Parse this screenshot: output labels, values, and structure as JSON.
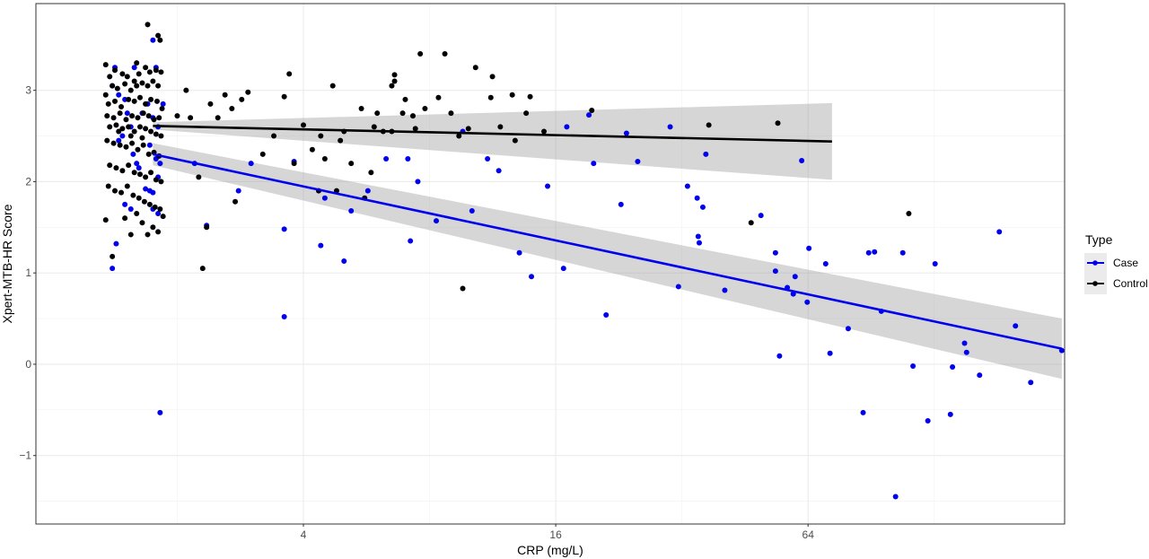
{
  "chart_data": {
    "type": "scatter",
    "title": "",
    "xlabel": "CRP (mg/L)",
    "ylabel": "Xpert-MTB-HR Score",
    "x_scale": "log2",
    "x_ticks": [
      4,
      16,
      64
    ],
    "y_ticks": [
      -1,
      0,
      1,
      2,
      3
    ],
    "xlim": [
      0.92,
      262
    ],
    "ylim": [
      -1.75,
      3.95
    ],
    "grid": true,
    "legend": {
      "title": "Type",
      "position": "right",
      "entries": [
        "Case",
        "Control"
      ]
    },
    "series": [
      {
        "name": "Case",
        "color": "#0000ee",
        "points": [
          [
            1.4,
            3.05
          ],
          [
            1.45,
            2.95
          ],
          [
            1.5,
            2.9
          ],
          [
            1.52,
            2.75
          ],
          [
            1.55,
            2.6
          ],
          [
            1.57,
            2.3
          ],
          [
            1.6,
            2.2
          ],
          [
            1.62,
            2.15
          ],
          [
            1.45,
            2.45
          ],
          [
            1.48,
            2.5
          ],
          [
            1.5,
            1.75
          ],
          [
            1.55,
            1.7
          ],
          [
            1.43,
            1.32
          ],
          [
            1.4,
            1.05
          ],
          [
            1.42,
            3.25
          ],
          [
            1.58,
            3.25
          ],
          [
            1.75,
            3.55
          ],
          [
            1.78,
            3.25
          ],
          [
            1.7,
            2.85
          ],
          [
            1.65,
            2.75
          ],
          [
            1.75,
            2.7
          ],
          [
            1.8,
            2.6
          ],
          [
            1.72,
            2.4
          ],
          [
            1.78,
            2.25
          ],
          [
            1.82,
            2.2
          ],
          [
            1.8,
            2.05
          ],
          [
            1.72,
            1.9
          ],
          [
            1.75,
            1.88
          ],
          [
            1.68,
            1.92
          ],
          [
            1.75,
            1.7
          ],
          [
            1.8,
            1.65
          ],
          [
            1.82,
            -0.53
          ],
          [
            1.85,
            2.85
          ],
          [
            2.2,
            2.2
          ],
          [
            2.35,
            1.52
          ],
          [
            2.8,
            1.9
          ],
          [
            3.0,
            2.2
          ],
          [
            3.6,
            1.48
          ],
          [
            3.6,
            0.52
          ],
          [
            3.8,
            2.22
          ],
          [
            4.4,
            1.3
          ],
          [
            4.5,
            1.82
          ],
          [
            5.0,
            1.13
          ],
          [
            5.2,
            1.68
          ],
          [
            5.7,
            1.9
          ],
          [
            6.3,
            2.25
          ],
          [
            7.2,
            1.35
          ],
          [
            7.1,
            2.25
          ],
          [
            7.5,
            2.0
          ],
          [
            8.3,
            1.57
          ],
          [
            9.6,
            2.55
          ],
          [
            10.1,
            1.68
          ],
          [
            11.0,
            2.25
          ],
          [
            11.7,
            2.12
          ],
          [
            13.1,
            1.22
          ],
          [
            14.0,
            0.96
          ],
          [
            15.3,
            1.95
          ],
          [
            16.7,
            1.05
          ],
          [
            19.2,
            2.73
          ],
          [
            19.7,
            2.2
          ],
          [
            21.1,
            0.54
          ],
          [
            22.9,
            1.75
          ],
          [
            23.6,
            2.53
          ],
          [
            25.1,
            2.22
          ],
          [
            31.4,
            0.85
          ],
          [
            33.0,
            1.95
          ],
          [
            34.8,
            1.82
          ],
          [
            35.2,
            1.33
          ],
          [
            35.9,
            1.72
          ],
          [
            36.5,
            2.3
          ],
          [
            40.5,
            0.81
          ],
          [
            49.4,
            1.63
          ],
          [
            53.5,
            1.22
          ],
          [
            53.5,
            1.02
          ],
          [
            54.7,
            0.09
          ],
          [
            57.1,
            0.84
          ],
          [
            59.0,
            0.77
          ],
          [
            59.6,
            0.96
          ],
          [
            61.8,
            2.23
          ],
          [
            63.7,
            0.68
          ],
          [
            64.3,
            1.27
          ],
          [
            70.5,
            1.1
          ],
          [
            72.2,
            0.12
          ],
          [
            79.8,
            0.39
          ],
          [
            86.6,
            -0.53
          ],
          [
            89.3,
            1.22
          ],
          [
            92.2,
            1.23
          ],
          [
            95.7,
            0.58
          ],
          [
            103.5,
            -1.45
          ],
          [
            107.7,
            1.22
          ],
          [
            113.9,
            -0.02
          ],
          [
            123.6,
            -0.62
          ],
          [
            128.6,
            1.1
          ],
          [
            139.9,
            -0.55
          ],
          [
            141.5,
            -0.03
          ],
          [
            151.2,
            0.23
          ],
          [
            152.9,
            0.13
          ],
          [
            164.2,
            -0.12
          ],
          [
            183.0,
            1.45
          ],
          [
            200.0,
            0.42
          ],
          [
            217.5,
            -0.2
          ],
          [
            258.0,
            0.15
          ],
          [
            30.0,
            2.6
          ],
          [
            35.0,
            1.4
          ],
          [
            17.0,
            2.6
          ]
        ]
      },
      {
        "name": "Control",
        "color": "#000000",
        "points": [
          [
            1.35,
            3.28
          ],
          [
            1.38,
            3.15
          ],
          [
            1.42,
            3.22
          ],
          [
            1.48,
            3.18
          ],
          [
            1.52,
            3.15
          ],
          [
            1.58,
            3.1
          ],
          [
            1.62,
            3.18
          ],
          [
            1.68,
            3.25
          ],
          [
            1.72,
            3.2
          ],
          [
            1.78,
            3.22
          ],
          [
            1.35,
            2.95
          ],
          [
            1.4,
            3.05
          ],
          [
            1.44,
            3.02
          ],
          [
            1.5,
            3.07
          ],
          [
            1.55,
            3.0
          ],
          [
            1.6,
            3.05
          ],
          [
            1.65,
            3.08
          ],
          [
            1.7,
            3.05
          ],
          [
            1.75,
            3.1
          ],
          [
            1.8,
            3.05
          ],
          [
            1.37,
            2.85
          ],
          [
            1.42,
            2.88
          ],
          [
            1.47,
            2.82
          ],
          [
            1.53,
            2.9
          ],
          [
            1.58,
            2.88
          ],
          [
            1.63,
            2.92
          ],
          [
            1.68,
            2.85
          ],
          [
            1.73,
            2.9
          ],
          [
            1.79,
            2.88
          ],
          [
            1.84,
            2.8
          ],
          [
            1.36,
            2.72
          ],
          [
            1.41,
            2.7
          ],
          [
            1.46,
            2.75
          ],
          [
            1.51,
            2.68
          ],
          [
            1.56,
            2.72
          ],
          [
            1.61,
            2.7
          ],
          [
            1.66,
            2.75
          ],
          [
            1.71,
            2.72
          ],
          [
            1.76,
            2.68
          ],
          [
            1.81,
            2.7
          ],
          [
            1.38,
            2.6
          ],
          [
            1.43,
            2.62
          ],
          [
            1.48,
            2.58
          ],
          [
            1.53,
            2.6
          ],
          [
            1.58,
            2.55
          ],
          [
            1.63,
            2.6
          ],
          [
            1.68,
            2.58
          ],
          [
            1.73,
            2.55
          ],
          [
            1.78,
            2.52
          ],
          [
            1.83,
            2.5
          ],
          [
            1.36,
            2.45
          ],
          [
            1.41,
            2.42
          ],
          [
            1.46,
            2.4
          ],
          [
            1.51,
            2.38
          ],
          [
            1.56,
            2.42
          ],
          [
            1.61,
            2.35
          ],
          [
            1.66,
            2.4
          ],
          [
            1.71,
            2.3
          ],
          [
            1.76,
            2.32
          ],
          [
            1.81,
            2.28
          ],
          [
            1.38,
            2.18
          ],
          [
            1.43,
            2.15
          ],
          [
            1.48,
            2.12
          ],
          [
            1.53,
            2.18
          ],
          [
            1.58,
            2.1
          ],
          [
            1.63,
            2.08
          ],
          [
            1.68,
            2.05
          ],
          [
            1.73,
            2.1
          ],
          [
            1.78,
            2.02
          ],
          [
            1.83,
            2.0
          ],
          [
            1.37,
            1.95
          ],
          [
            1.42,
            1.9
          ],
          [
            1.47,
            1.88
          ],
          [
            1.52,
            1.95
          ],
          [
            1.57,
            1.85
          ],
          [
            1.62,
            1.82
          ],
          [
            1.67,
            1.78
          ],
          [
            1.72,
            1.75
          ],
          [
            1.77,
            1.72
          ],
          [
            1.82,
            1.7
          ],
          [
            1.35,
            1.58
          ],
          [
            1.4,
            1.18
          ],
          [
            1.5,
            1.6
          ],
          [
            1.55,
            1.42
          ],
          [
            1.6,
            1.65
          ],
          [
            1.65,
            1.55
          ],
          [
            1.7,
            1.42
          ],
          [
            1.75,
            1.5
          ],
          [
            1.8,
            1.45
          ],
          [
            1.85,
            1.62
          ],
          [
            1.7,
            3.72
          ],
          [
            1.8,
            3.6
          ],
          [
            1.82,
            3.55
          ],
          [
            1.6,
            3.3
          ],
          [
            1.83,
            3.2
          ],
          [
            1.45,
            2.55
          ],
          [
            1.55,
            2.5
          ],
          [
            1.65,
            2.48
          ],
          [
            2.0,
            2.72
          ],
          [
            2.1,
            3.0
          ],
          [
            2.15,
            2.7
          ],
          [
            2.25,
            2.05
          ],
          [
            2.35,
            1.5
          ],
          [
            2.3,
            1.05
          ],
          [
            2.4,
            2.85
          ],
          [
            2.5,
            2.7
          ],
          [
            2.6,
            2.95
          ],
          [
            2.7,
            2.8
          ],
          [
            2.75,
            1.78
          ],
          [
            2.85,
            2.9
          ],
          [
            2.95,
            2.98
          ],
          [
            3.2,
            2.3
          ],
          [
            3.4,
            2.5
          ],
          [
            3.6,
            2.93
          ],
          [
            3.7,
            3.18
          ],
          [
            3.8,
            2.2
          ],
          [
            4.0,
            2.62
          ],
          [
            4.2,
            2.35
          ],
          [
            4.4,
            2.5
          ],
          [
            4.5,
            2.25
          ],
          [
            4.8,
            1.9
          ],
          [
            4.9,
            2.45
          ],
          [
            4.7,
            3.05
          ],
          [
            5.0,
            2.55
          ],
          [
            5.2,
            2.2
          ],
          [
            5.5,
            2.8
          ],
          [
            5.8,
            2.1
          ],
          [
            5.9,
            2.6
          ],
          [
            6.0,
            2.75
          ],
          [
            6.2,
            2.55
          ],
          [
            6.5,
            2.55
          ],
          [
            6.5,
            3.05
          ],
          [
            6.6,
            3.1
          ],
          [
            6.6,
            3.17
          ],
          [
            6.9,
            2.75
          ],
          [
            7.0,
            2.9
          ],
          [
            7.3,
            2.72
          ],
          [
            7.4,
            2.58
          ],
          [
            7.6,
            3.4
          ],
          [
            7.8,
            2.8
          ],
          [
            8.4,
            2.92
          ],
          [
            8.7,
            3.4
          ],
          [
            9.0,
            2.75
          ],
          [
            9.4,
            2.5
          ],
          [
            9.6,
            0.83
          ],
          [
            9.9,
            2.58
          ],
          [
            10.3,
            3.25
          ],
          [
            11.2,
            2.92
          ],
          [
            11.3,
            3.15
          ],
          [
            11.8,
            2.6
          ],
          [
            12.6,
            2.95
          ],
          [
            12.8,
            2.45
          ],
          [
            13.6,
            2.75
          ],
          [
            13.9,
            2.93
          ],
          [
            15.0,
            2.55
          ],
          [
            19.5,
            2.78
          ],
          [
            37.1,
            2.62
          ],
          [
            46.8,
            1.55
          ],
          [
            54.2,
            2.64
          ],
          [
            111.3,
            1.65
          ],
          [
            5.6,
            1.82
          ],
          [
            4.35,
            1.9
          ]
        ]
      }
    ],
    "fits": [
      {
        "series": "Case",
        "x_range": [
          1.75,
          258
        ],
        "y_start": 2.3,
        "y_end": 0.17,
        "ci_start": 0.12,
        "ci_end": 0.33
      },
      {
        "series": "Control",
        "x_range": [
          1.75,
          73
        ],
        "y_start": 2.61,
        "y_end": 2.44,
        "ci_start": 0.04,
        "ci_end": 0.42
      }
    ]
  }
}
